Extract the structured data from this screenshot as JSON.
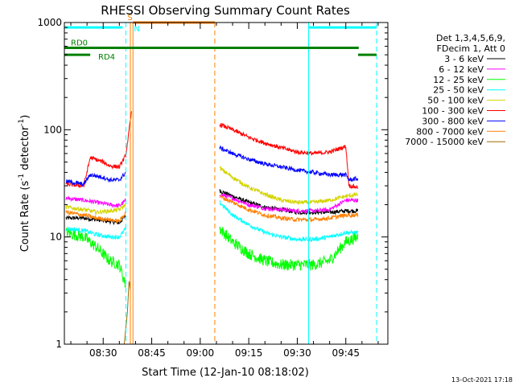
{
  "chart_data": {
    "type": "line",
    "title": "RHESSI Observing Summary Count Rates",
    "xlabel": "Start Time (12-Jan-10 08:18:02)",
    "ylabel_main": "Count Rate (s",
    "ylabel_sup": "-1",
    "ylabel_mid": " detector",
    "ylabel_sup2": "-1",
    "ylabel_end": ")",
    "yscale": "log",
    "ylim": [
      1,
      1000
    ],
    "xlim_minutes": [
      18.0,
      118.0
    ],
    "xticks": [
      {
        "minute": 30,
        "label": "08:30"
      },
      {
        "minute": 45,
        "label": "08:45"
      },
      {
        "minute": 60,
        "label": "09:00"
      },
      {
        "minute": 75,
        "label": "09:15"
      },
      {
        "minute": 90,
        "label": "09:30"
      },
      {
        "minute": 105,
        "label": "09:45"
      }
    ],
    "yticks": [
      {
        "value": 1,
        "label": "1"
      },
      {
        "value": 10,
        "label": "10"
      },
      {
        "value": 100,
        "label": "100"
      },
      {
        "value": 1000,
        "label": "1000"
      }
    ],
    "legend_header": [
      "Det 1,3,4,5,6,9,",
      "FDecim 1, Att 0"
    ],
    "segments": [
      {
        "start": 18.5,
        "end": 37.0,
        "flare_peak": 38.8
      },
      {
        "start": 66.0,
        "end": 108.8,
        "flare_peak": null
      }
    ],
    "series": [
      {
        "name": "3 - 6 keV",
        "color": "#000000",
        "values": [
          [
            18.5,
            15
          ],
          [
            24,
            15
          ],
          [
            28,
            14.5
          ],
          [
            32,
            14
          ],
          [
            35,
            13.5
          ],
          [
            37,
            16
          ],
          [
            66,
            27
          ],
          [
            70,
            24
          ],
          [
            75,
            21
          ],
          [
            80,
            19
          ],
          [
            85,
            18
          ],
          [
            90,
            17
          ],
          [
            95,
            17
          ],
          [
            100,
            17
          ],
          [
            105,
            17.5
          ],
          [
            108.8,
            17.5
          ]
        ]
      },
      {
        "name": "6 - 12 keV",
        "color": "#ff00ff",
        "values": [
          [
            18.5,
            23
          ],
          [
            24,
            22
          ],
          [
            28,
            21
          ],
          [
            32,
            20
          ],
          [
            35,
            19.5
          ],
          [
            37,
            22
          ],
          [
            66,
            25
          ],
          [
            70,
            23
          ],
          [
            75,
            20
          ],
          [
            80,
            18.5
          ],
          [
            85,
            18
          ],
          [
            90,
            17.5
          ],
          [
            95,
            17.5
          ],
          [
            100,
            18
          ],
          [
            105,
            22
          ],
          [
            108.8,
            22
          ]
        ]
      },
      {
        "name": "12 - 25 keV",
        "color": "#00ff00",
        "values": [
          [
            18.5,
            11
          ],
          [
            24,
            10
          ],
          [
            28,
            8
          ],
          [
            32,
            6
          ],
          [
            35,
            5.5
          ],
          [
            37,
            3.5
          ],
          [
            66,
            12
          ],
          [
            70,
            9
          ],
          [
            75,
            7
          ],
          [
            80,
            6
          ],
          [
            85,
            5.5
          ],
          [
            90,
            5.5
          ],
          [
            95,
            5.5
          ],
          [
            100,
            6
          ],
          [
            105,
            9
          ],
          [
            108.8,
            10
          ]
        ]
      },
      {
        "name": "25 - 50 keV",
        "color": "#00ffff",
        "values": [
          [
            18.5,
            12
          ],
          [
            24,
            11.5
          ],
          [
            28,
            10.5
          ],
          [
            32,
            10
          ],
          [
            35,
            10
          ],
          [
            37,
            12
          ],
          [
            66,
            21
          ],
          [
            70,
            16
          ],
          [
            75,
            13
          ],
          [
            80,
            11
          ],
          [
            85,
            10
          ],
          [
            90,
            9.5
          ],
          [
            95,
            9.5
          ],
          [
            100,
            10
          ],
          [
            105,
            11
          ],
          [
            108.8,
            11
          ]
        ]
      },
      {
        "name": "50 - 100 keV",
        "color": "#d4d400",
        "values": [
          [
            18.5,
            19
          ],
          [
            24,
            18
          ],
          [
            28,
            17
          ],
          [
            32,
            17.5
          ],
          [
            35,
            18
          ],
          [
            37,
            20
          ],
          [
            66,
            44
          ],
          [
            70,
            36
          ],
          [
            75,
            29
          ],
          [
            80,
            25
          ],
          [
            85,
            22
          ],
          [
            90,
            21
          ],
          [
            95,
            21
          ],
          [
            100,
            22
          ],
          [
            105,
            24
          ],
          [
            108.8,
            25
          ]
        ]
      },
      {
        "name": "100 - 300 keV",
        "color": "#ff0000",
        "values": [
          [
            18.5,
            31
          ],
          [
            24,
            30
          ],
          [
            26,
            55
          ],
          [
            30,
            50
          ],
          [
            32,
            46
          ],
          [
            35,
            45
          ],
          [
            37,
            58
          ],
          [
            38.8,
            150
          ],
          [
            66,
            112
          ],
          [
            70,
            100
          ],
          [
            75,
            85
          ],
          [
            80,
            75
          ],
          [
            85,
            68
          ],
          [
            90,
            62
          ],
          [
            95,
            60
          ],
          [
            100,
            62
          ],
          [
            105,
            70
          ],
          [
            106,
            30
          ],
          [
            108.8,
            29
          ]
        ]
      },
      {
        "name": "300 - 800 keV",
        "color": "#0000ff",
        "values": [
          [
            18.5,
            33
          ],
          [
            24,
            31
          ],
          [
            26,
            38
          ],
          [
            30,
            36
          ],
          [
            32,
            34
          ],
          [
            35,
            34
          ],
          [
            37,
            40
          ],
          [
            66,
            68
          ],
          [
            70,
            60
          ],
          [
            75,
            53
          ],
          [
            80,
            48
          ],
          [
            85,
            45
          ],
          [
            90,
            42
          ],
          [
            95,
            40
          ],
          [
            100,
            38
          ],
          [
            105,
            38
          ],
          [
            106,
            34
          ],
          [
            108.8,
            35
          ]
        ]
      },
      {
        "name": "800 - 7000 keV",
        "color": "#ff8000",
        "values": [
          [
            18.5,
            17
          ],
          [
            24,
            16
          ],
          [
            28,
            15
          ],
          [
            32,
            14.5
          ],
          [
            35,
            14
          ],
          [
            37,
            17
          ],
          [
            66,
            24
          ],
          [
            70,
            21
          ],
          [
            75,
            18
          ],
          [
            80,
            16
          ],
          [
            85,
            15
          ],
          [
            90,
            14.5
          ],
          [
            95,
            14.5
          ],
          [
            100,
            15
          ],
          [
            105,
            16
          ],
          [
            108.8,
            16
          ]
        ]
      },
      {
        "name": "7000 - 15000 keV",
        "color": "#9b6b00",
        "values": [
          [
            36.5,
            1
          ],
          [
            37.5,
            2
          ],
          [
            38,
            4
          ],
          [
            38.5,
            3
          ]
        ]
      }
    ],
    "vertical_markers": [
      {
        "minute": 18.0,
        "color": "#00ffff",
        "style": "solid"
      },
      {
        "minute": 37.0,
        "color": "#00ffff",
        "style": "dashed"
      },
      {
        "minute": 38.4,
        "color": "#ff8000",
        "style": "solid"
      },
      {
        "minute": 39.2,
        "color": "#ff8000",
        "style": "solid"
      },
      {
        "minute": 64.5,
        "color": "#ff8000",
        "style": "dashed"
      },
      {
        "minute": 93.5,
        "color": "#00ffff",
        "style": "solid"
      },
      {
        "minute": 114.5,
        "color": "#00ffff",
        "style": "dashed"
      }
    ],
    "flag_bars": [
      {
        "label": "",
        "start": 18.0,
        "end": 36.0,
        "y_value": 900,
        "color": "#00ffff"
      },
      {
        "label": "",
        "start": 93.5,
        "end": 114.5,
        "y_value": 900,
        "color": "#00ffff"
      },
      {
        "label": "",
        "start": 39.2,
        "end": 64.5,
        "y_value": 1000,
        "color": "#ff8000"
      },
      {
        "label": "RD0",
        "start": 18.0,
        "end": 109.0,
        "y_value": 580,
        "color": "#008000"
      },
      {
        "label": "RD4",
        "start": 18.0,
        "end": 26.0,
        "y_value": 500,
        "color": "#008000"
      },
      {
        "label": "",
        "start": 108.8,
        "end": 114.5,
        "y_value": 500,
        "color": "#008000"
      }
    ],
    "marker_letters": [
      {
        "letter": "S",
        "minute": 37.5,
        "y_value": 1050,
        "color": "#ff8000"
      },
      {
        "letter": "N",
        "minute": 39.5,
        "y_value": 830,
        "color": "#00ffff"
      }
    ]
  },
  "timestamp": "13-Oct-2021 17:18"
}
